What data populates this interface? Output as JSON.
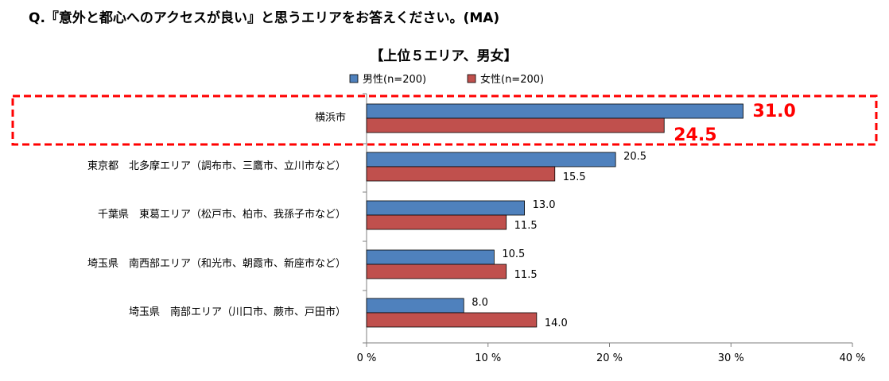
{
  "question": "Q.『意外と都心へのアクセスが良い』と思うエリアをお答えください。(MA)",
  "chart_data": {
    "type": "bar",
    "orientation": "horizontal",
    "title": "【上位５エリア、男女】",
    "categories": [
      "横浜市",
      "東京都　北多摩エリア（調布市、三鷹市、立川市など）",
      "千葉県　東葛エリア（松戸市、柏市、我孫子市など）",
      "埼玉県　南西部エリア（和光市、朝霞市、新座市など）",
      "埼玉県　南部エリア（川口市、蕨市、戸田市）"
    ],
    "series": [
      {
        "name": "男性(n=200)",
        "values": [
          31.0,
          20.5,
          13.0,
          10.5,
          8.0
        ],
        "labels": [
          "31.0",
          "20.5",
          "13.0",
          "10.5",
          "8.0"
        ]
      },
      {
        "name": "女性(n=200)",
        "values": [
          24.5,
          15.5,
          11.5,
          11.5,
          14.0
        ],
        "labels": [
          "24.5",
          "15.5",
          "11.5",
          "11.5",
          "14.0"
        ]
      }
    ],
    "xlim": [
      0,
      40
    ],
    "ticks": [
      "0 %",
      "10 %",
      "20 %",
      "30 %",
      "40 %"
    ],
    "legend_position": "top",
    "highlight_category": "横浜市",
    "colors": {
      "male": "#4f81bd",
      "female": "#c0504d",
      "highlight": "#ff0000",
      "axis": "#7f7f7f",
      "bar_border": "#000000"
    }
  }
}
